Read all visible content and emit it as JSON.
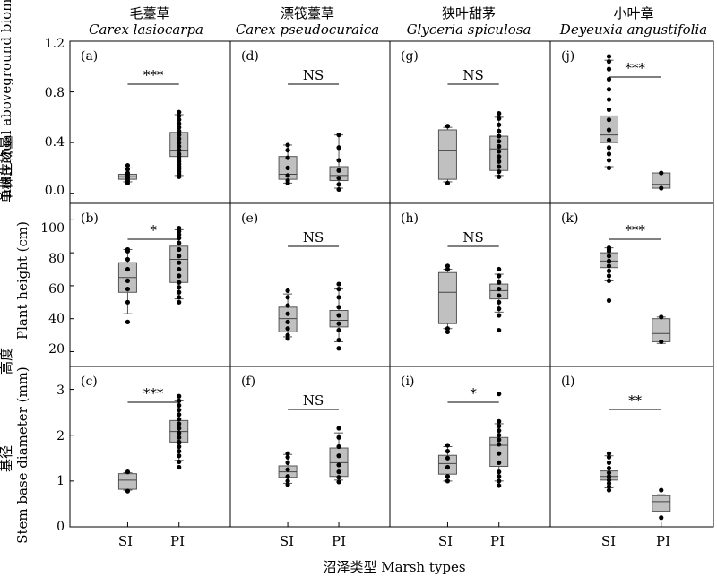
{
  "figure": {
    "x_axis_title": "沼泽类型 Marsh types",
    "species": [
      {
        "cn": "毛薹草",
        "latin": "Carex lasiocarpa"
      },
      {
        "cn": "漂筏薹草",
        "latin": "Carex pseudocuraica"
      },
      {
        "cn": "狭叶甜茅",
        "latin": "Glyceria spiculosa"
      },
      {
        "cn": "小叶章",
        "latin": "Deyeuxia angustifolia"
      }
    ],
    "rows": [
      {
        "ylabel_cn": "单株生物量",
        "ylabel_en": "Individual aboveground biomass (g)",
        "ticks": [
          "0.0",
          "0.4",
          "0.8",
          "1.2"
        ]
      },
      {
        "ylabel_cn": "高度",
        "ylabel_en": "Plant height (cm)",
        "ticks": [
          "20",
          "40",
          "60",
          "80",
          "100"
        ]
      },
      {
        "ylabel_cn": "基径",
        "ylabel_en": "Stem base diameter (mm)",
        "ticks": [
          "0",
          "1",
          "2",
          "3"
        ]
      }
    ],
    "x_categories": [
      "SI",
      "PI"
    ],
    "box_fill": "#c0c0c0"
  },
  "chart_data": {
    "type": "box",
    "categories": [
      "SI",
      "PI"
    ],
    "panels": [
      {
        "label": "(a)",
        "species": "Carex lasiocarpa",
        "variable": "Individual aboveground biomass (g)",
        "ylim": [
          -0.08,
          1.2
        ],
        "significance": "***",
        "boxes": [
          {
            "category": "SI",
            "whisker_low": 0.09,
            "q1": 0.11,
            "median": 0.13,
            "q3": 0.15,
            "whisker_high": 0.2,
            "points": [
              0.08,
              0.1,
              0.12,
              0.14,
              0.16,
              0.19,
              0.22
            ]
          },
          {
            "category": "PI",
            "whisker_low": 0.14,
            "q1": 0.29,
            "median": 0.34,
            "q3": 0.48,
            "whisker_high": 0.62,
            "points": [
              0.13,
              0.15,
              0.17,
              0.19,
              0.21,
              0.23,
              0.25,
              0.27,
              0.29,
              0.31,
              0.34,
              0.37,
              0.4,
              0.43,
              0.46,
              0.49,
              0.52,
              0.55,
              0.58,
              0.61,
              0.64
            ]
          }
        ]
      },
      {
        "label": "(d)",
        "species": "Carex pseudocuraica",
        "variable": "Individual aboveground biomass (g)",
        "ylim": [
          -0.08,
          1.2
        ],
        "significance": "NS",
        "boxes": [
          {
            "category": "SI",
            "whisker_low": 0.08,
            "q1": 0.11,
            "median": 0.15,
            "q3": 0.29,
            "whisker_high": 0.38,
            "points": [
              0.08,
              0.1,
              0.14,
              0.2,
              0.28,
              0.34,
              0.38
            ]
          },
          {
            "category": "PI",
            "whisker_low": 0.04,
            "q1": 0.1,
            "median": 0.14,
            "q3": 0.21,
            "whisker_high": 0.46,
            "points": [
              0.03,
              0.07,
              0.12,
              0.18,
              0.26,
              0.36,
              0.46
            ]
          }
        ]
      },
      {
        "label": "(g)",
        "species": "Glyceria spiculosa",
        "variable": "Individual aboveground biomass (g)",
        "ylim": [
          -0.08,
          1.2
        ],
        "significance": "NS",
        "boxes": [
          {
            "category": "SI",
            "whisker_low": 0.09,
            "q1": 0.11,
            "median": 0.34,
            "q3": 0.5,
            "whisker_high": 0.52,
            "points": [
              0.08,
              0.53
            ]
          },
          {
            "category": "PI",
            "whisker_low": 0.14,
            "q1": 0.18,
            "median": 0.35,
            "q3": 0.45,
            "whisker_high": 0.6,
            "points": [
              0.13,
              0.17,
              0.21,
              0.25,
              0.29,
              0.33,
              0.37,
              0.41,
              0.45,
              0.49,
              0.54,
              0.59,
              0.63
            ]
          }
        ]
      },
      {
        "label": "(j)",
        "species": "Deyeuxia angustifolia",
        "variable": "Individual aboveground biomass (g)",
        "ylim": [
          -0.08,
          1.2
        ],
        "significance": "***",
        "boxes": [
          {
            "category": "SI",
            "whisker_low": 0.21,
            "q1": 0.4,
            "median": 0.46,
            "q3": 0.61,
            "whisker_high": 1.05,
            "points": [
              0.2,
              0.26,
              0.31,
              0.36,
              0.42,
              0.5,
              0.58,
              0.66,
              0.74,
              0.82,
              0.9,
              0.98,
              1.04,
              1.08
            ]
          },
          {
            "category": "PI",
            "whisker_low": 0.04,
            "q1": 0.04,
            "median": 0.07,
            "q3": 0.16,
            "whisker_high": 0.16,
            "points": [
              0.04,
              0.16
            ]
          }
        ]
      },
      {
        "label": "(b)",
        "species": "Carex lasiocarpa",
        "variable": "Plant height (cm)",
        "ylim": [
          11,
          110
        ],
        "significance": "*",
        "boxes": [
          {
            "category": "SI",
            "whisker_low": 43,
            "q1": 56,
            "median": 65,
            "q3": 74,
            "whisker_high": 82,
            "points": [
              38,
              50,
              58,
              63,
              70,
              76,
              81,
              82
            ]
          },
          {
            "category": "PI",
            "whisker_low": 52,
            "q1": 62,
            "median": 76,
            "q3": 84,
            "whisker_high": 94,
            "points": [
              50,
              53,
              56,
              59,
              62,
              66,
              70,
              74,
              78,
              82,
              86,
              89,
              91,
              93,
              95
            ]
          }
        ]
      },
      {
        "label": "(e)",
        "species": "Carex pseudocuraica",
        "variable": "Plant height (cm)",
        "ylim": [
          11,
          110
        ],
        "significance": "NS",
        "boxes": [
          {
            "category": "SI",
            "whisker_low": 29,
            "q1": 32,
            "median": 40,
            "q3": 47,
            "whisker_high": 55,
            "points": [
              28,
              30,
              34,
              38,
              43,
              48,
              53,
              57
            ]
          },
          {
            "category": "PI",
            "whisker_low": 26,
            "q1": 35,
            "median": 39,
            "q3": 45,
            "whisker_high": 58,
            "points": [
              22,
              27,
              33,
              37,
              42,
              47,
              53,
              58,
              61
            ]
          }
        ]
      },
      {
        "label": "(h)",
        "species": "Glyceria spiculosa",
        "variable": "Plant height (cm)",
        "ylim": [
          11,
          110
        ],
        "significance": "NS",
        "boxes": [
          {
            "category": "SI",
            "whisker_low": 34,
            "q1": 37,
            "median": 56,
            "q3": 68,
            "whisker_high": 70,
            "points": [
              32,
              34,
              70,
              72
            ]
          },
          {
            "category": "PI",
            "whisker_low": 44,
            "q1": 52,
            "median": 57,
            "q3": 61,
            "whisker_high": 67,
            "points": [
              33,
              42,
              46,
              50,
              54,
              58,
              62,
              66,
              70
            ]
          }
        ]
      },
      {
        "label": "(k)",
        "species": "Deyeuxia angustifolia",
        "variable": "Plant height (cm)",
        "ylim": [
          11,
          110
        ],
        "significance": "***",
        "boxes": [
          {
            "category": "SI",
            "whisker_low": 63,
            "q1": 71,
            "median": 75,
            "q3": 80,
            "whisker_high": 83,
            "points": [
              51,
              63,
              66,
              69,
              72,
              75,
              78,
              81,
              82,
              83
            ]
          },
          {
            "category": "PI",
            "whisker_low": 25,
            "q1": 26,
            "median": 31,
            "q3": 40,
            "whisker_high": 41,
            "points": [
              26,
              41
            ]
          }
        ]
      },
      {
        "label": "(c)",
        "species": "Carex lasiocarpa",
        "variable": "Stem base diameter (mm)",
        "ylim": [
          0,
          3.5
        ],
        "significance": "***",
        "boxes": [
          {
            "category": "SI",
            "whisker_low": 0.8,
            "q1": 0.82,
            "median": 1.02,
            "q3": 1.16,
            "whisker_high": 1.18,
            "points": [
              0.78,
              1.2
            ]
          },
          {
            "category": "PI",
            "whisker_low": 1.45,
            "q1": 1.85,
            "median": 2.08,
            "q3": 2.32,
            "whisker_high": 2.75,
            "points": [
              1.3,
              1.42,
              1.55,
              1.65,
              1.75,
              1.85,
              1.95,
              2.05,
              2.15,
              2.25,
              2.35,
              2.45,
              2.55,
              2.65,
              2.75,
              2.85
            ]
          }
        ]
      },
      {
        "label": "(f)",
        "species": "Carex pseudocuraica",
        "variable": "Stem base diameter (mm)",
        "ylim": [
          0,
          3.5
        ],
        "significance": "NS",
        "boxes": [
          {
            "category": "SI",
            "whisker_low": 0.95,
            "q1": 1.08,
            "median": 1.2,
            "q3": 1.33,
            "whisker_high": 1.58,
            "points": [
              0.92,
              1.0,
              1.1,
              1.25,
              1.4,
              1.52,
              1.6
            ]
          },
          {
            "category": "PI",
            "whisker_low": 1.02,
            "q1": 1.1,
            "median": 1.4,
            "q3": 1.72,
            "whisker_high": 2.05,
            "points": [
              0.98,
              1.08,
              1.2,
              1.35,
              1.55,
              1.75,
              1.95,
              2.15
            ]
          }
        ]
      },
      {
        "label": "(i)",
        "species": "Glyceria spiculosa",
        "variable": "Stem base diameter (mm)",
        "ylim": [
          0,
          3.5
        ],
        "significance": "*",
        "boxes": [
          {
            "category": "SI",
            "whisker_low": 1.0,
            "q1": 1.15,
            "median": 1.38,
            "q3": 1.56,
            "whisker_high": 1.75,
            "points": [
              1.0,
              1.1,
              1.3,
              1.5,
              1.65,
              1.78
            ]
          },
          {
            "category": "PI",
            "whisker_low": 1.0,
            "q1": 1.32,
            "median": 1.78,
            "q3": 1.95,
            "whisker_high": 2.25,
            "points": [
              0.9,
              1.0,
              1.1,
              1.2,
              1.4,
              1.6,
              1.8,
              1.9,
              2.0,
              2.1,
              2.2,
              2.3,
              2.9
            ]
          }
        ]
      },
      {
        "label": "(l)",
        "species": "Deyeuxia angustifolia",
        "variable": "Stem base diameter (mm)",
        "ylim": [
          0,
          3.5
        ],
        "significance": "**",
        "boxes": [
          {
            "category": "SI",
            "whisker_low": 0.85,
            "q1": 1.02,
            "median": 1.1,
            "q3": 1.22,
            "whisker_high": 1.55,
            "points": [
              0.8,
              0.88,
              0.95,
              1.02,
              1.1,
              1.18,
              1.28,
              1.4,
              1.52,
              1.6
            ]
          },
          {
            "category": "PI",
            "whisker_low": 0.34,
            "q1": 0.34,
            "median": 0.55,
            "q3": 0.68,
            "whisker_high": 0.7,
            "points": [
              0.2,
              0.8
            ]
          }
        ]
      }
    ]
  }
}
